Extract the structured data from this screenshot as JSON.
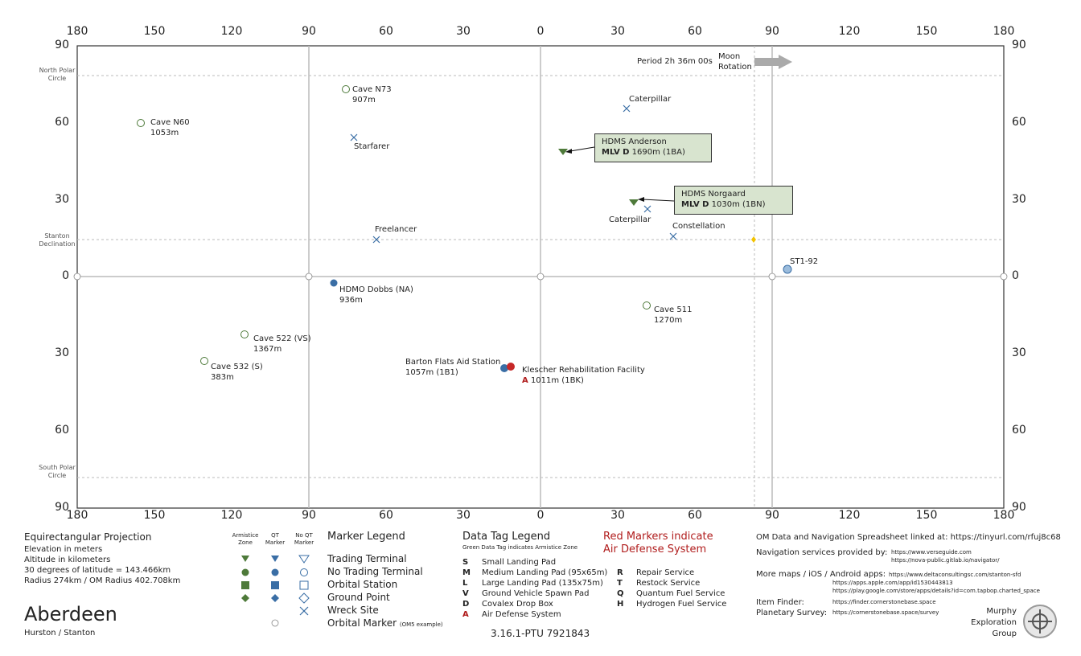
{
  "axis": {
    "lon_top": [
      "180",
      "150",
      "120",
      "90",
      "60",
      "30",
      "0",
      "30",
      "60",
      "90",
      "120",
      "150",
      "180"
    ],
    "lat_left": [
      "90",
      "60",
      "30",
      "0",
      "30",
      "60",
      "90"
    ],
    "polar_north": [
      "North Polar",
      "Circle"
    ],
    "polar_south": [
      "South Polar",
      "Circle"
    ],
    "stanton_decl": [
      "Stanton",
      "Declination"
    ]
  },
  "rotation": {
    "period": "Period 2h 36m 00s",
    "label1": "Moon",
    "label2": "Rotation"
  },
  "locations": [
    {
      "name": "Cave N60",
      "sub": "1053m"
    },
    {
      "name": "Cave N73",
      "sub": "907m"
    },
    {
      "name": "Starfarer",
      "sub": ""
    },
    {
      "name": "Caterpillar",
      "sub": ""
    },
    {
      "name": "Freelancer",
      "sub": ""
    },
    {
      "name": "Caterpillar",
      "sub": ""
    },
    {
      "name": "Constellation",
      "sub": ""
    },
    {
      "name": "ST1-92",
      "sub": ""
    },
    {
      "name": "HDMO Dobbs (NA)",
      "sub": "936m"
    },
    {
      "name": "Cave 511",
      "sub": "1270m"
    },
    {
      "name": "Cave 522 (VS)",
      "sub": "1367m"
    },
    {
      "name": "Cave 532 (S)",
      "sub": "383m"
    },
    {
      "name": "Barton Flats Aid Station",
      "sub": "1057m (1B1)"
    },
    {
      "name": "Klescher Rehabilitation Facility",
      "sub": "1011m (1BK)"
    }
  ],
  "callouts": [
    {
      "name": "HDMS Anderson",
      "code": "MLV D",
      "detail": "1690m (1BA)"
    },
    {
      "name": "HDMS Norgaard",
      "code": "MLV D",
      "detail": "1030m (1BN)"
    }
  ],
  "klescher_marker": "A",
  "info": {
    "projection": "Equirectangular  Projection",
    "lines": [
      "Elevation in meters",
      "Altitude in kilometers",
      "30 degrees of latitude = 143.466km",
      "Radius 274km / OM Radius 402.708km"
    ]
  },
  "name": {
    "title": "Aberdeen",
    "subtitle": "Hurston / Stanton"
  },
  "marker_legend": {
    "title": "Marker Legend",
    "col_headers": [
      [
        "Armistice",
        "Zone"
      ],
      [
        "QT",
        "Marker"
      ],
      [
        "No QT",
        "Marker"
      ]
    ],
    "rows": [
      "Trading Terminal",
      "No Trading Terminal",
      "Orbital Station",
      "Ground Point",
      "Wreck Site",
      "Orbital Marker"
    ],
    "orbital_note": "(OM5 example)"
  },
  "data_tag_legend": {
    "title": "Data Tag Legend",
    "subtitle": "Green Data Tag indicates Armistice Zone",
    "left": [
      {
        "k": "S",
        "v": "Small Landing Pad"
      },
      {
        "k": "M",
        "v": "Medium Landing Pad (95x65m)"
      },
      {
        "k": "L",
        "v": "Large Landing Pad (135x75m)"
      },
      {
        "k": "V",
        "v": "Ground Vehicle Spawn Pad"
      },
      {
        "k": "D",
        "v": "Covalex Drop Box"
      },
      {
        "k": "A",
        "v": "Air Defense System"
      }
    ],
    "right": [
      {
        "k": "R",
        "v": "Repair Service"
      },
      {
        "k": "T",
        "v": "Restock Service"
      },
      {
        "k": "Q",
        "v": "Quantum Fuel Service"
      },
      {
        "k": "H",
        "v": "Hydrogen Fuel Service"
      }
    ]
  },
  "red_note": [
    "Red Markers indicate",
    "Air Defense System"
  ],
  "version": "3.16.1-PTU 7921843",
  "links": {
    "spreadsheet": "OM Data and Navigation Spreadsheet linked at: https://tinyurl.com/rfuj8c68",
    "nav_label": "Navigation services provided by:",
    "nav_urls": [
      "https://www.verseguide.com",
      "https://nova-public.gitlab.io/navigator/"
    ],
    "maps_label": "More maps / iOS / Android apps:",
    "maps_urls": [
      "https://www.deltaconsultingsc.com/stanton-sfd",
      "https://apps.apple.com/app/id1530443813",
      "https://play.google.com/store/apps/details?id=com.tapbop.charted_space"
    ],
    "item_label": "Item Finder:",
    "item_url": "https://finder.cornerstonebase.space",
    "survey_label": "Planetary Survey:",
    "survey_url": "https://cornerstonebase.space/survey"
  },
  "credit": [
    "Murphy",
    "Exploration",
    "Group"
  ],
  "colors": {
    "green": "#4e7a3a",
    "blue": "#3a6ea5",
    "red": "#c62828",
    "callout_bg": "#d8e4cf",
    "grid": "#bbbbbb",
    "yellow": "#f2c200"
  }
}
